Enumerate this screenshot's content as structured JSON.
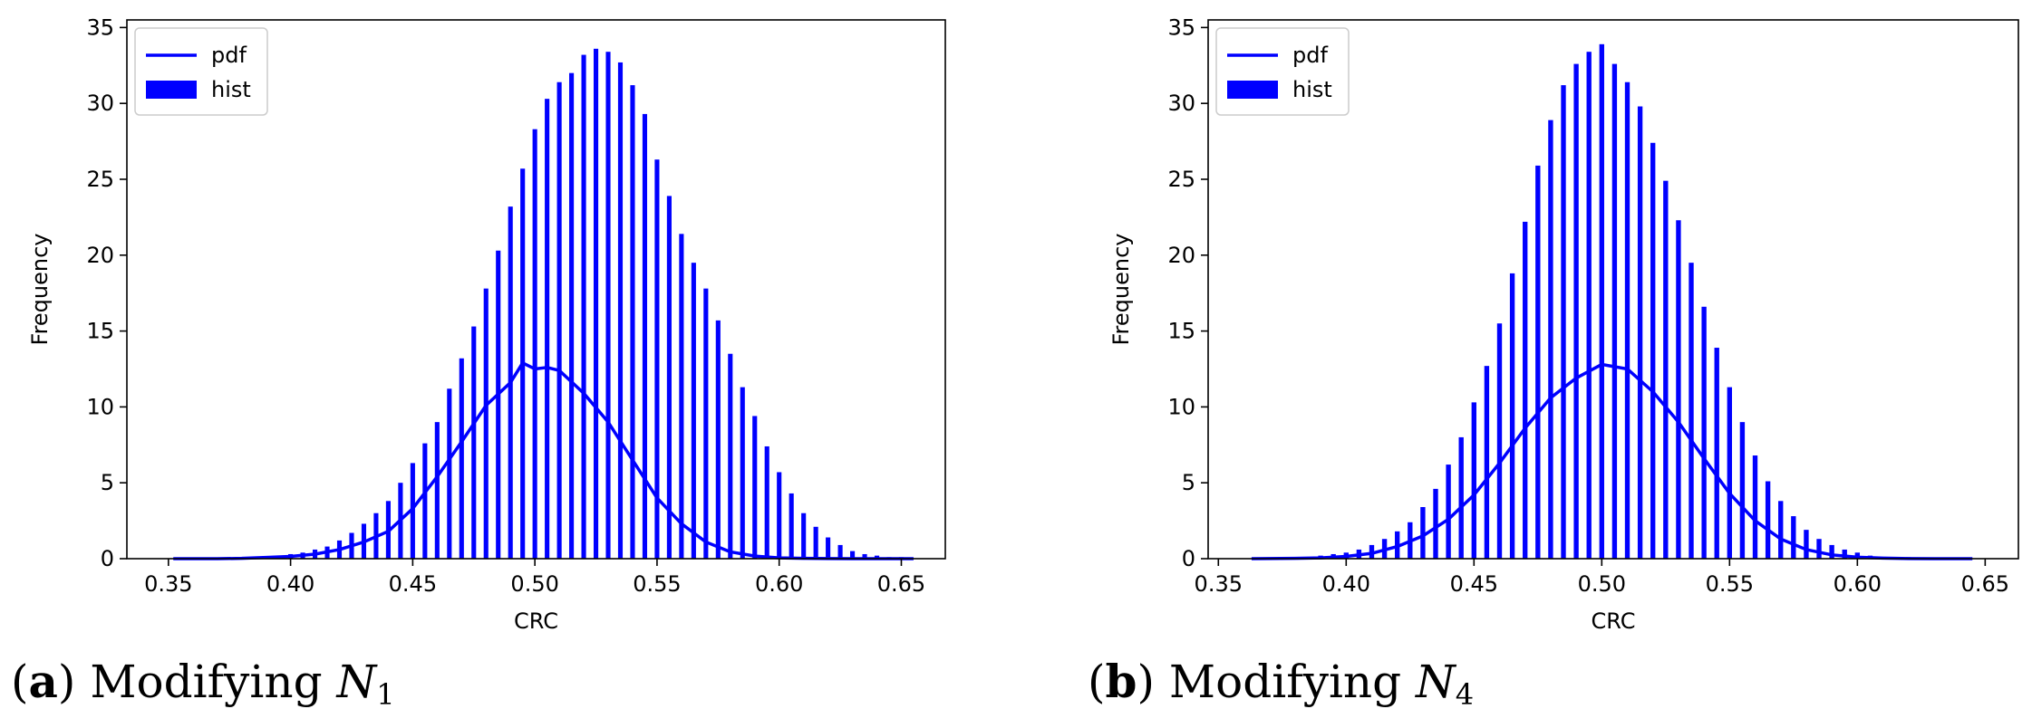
{
  "figure": {
    "subplots": [
      {
        "caption": {
          "paren_open": "(",
          "label": "a",
          "paren_close": ")",
          "text": " Modifying ",
          "var": "N",
          "sub": "1"
        }
      },
      {
        "caption": {
          "paren_open": "(",
          "label": "b",
          "paren_close": ")",
          "text": " Modifying ",
          "var": "N",
          "sub": "4"
        }
      }
    ]
  },
  "colors": {
    "series": "#0000ff",
    "axes": "#000000"
  },
  "chart_data": [
    {
      "type": "bar",
      "title": "",
      "xlabel": "CRC",
      "ylabel": "Frequency",
      "xlim": [
        0.333,
        0.668
      ],
      "ylim": [
        0,
        35.5
      ],
      "xticks": [
        0.35,
        0.4,
        0.45,
        0.5,
        0.55,
        0.6,
        0.65
      ],
      "xtick_labels": [
        "0.35",
        "0.40",
        "0.45",
        "0.50",
        "0.55",
        "0.60",
        "0.65"
      ],
      "yticks": [
        0,
        5,
        10,
        15,
        20,
        25,
        30,
        35
      ],
      "ytick_labels": [
        "0",
        "5",
        "10",
        "15",
        "20",
        "25",
        "30",
        "35"
      ],
      "legend": {
        "position": "top-left",
        "entries": [
          {
            "label": "pdf",
            "kind": "line"
          },
          {
            "label": "hist",
            "kind": "patch"
          }
        ]
      },
      "hist": {
        "bin_width": 0.005,
        "bin_centers": [
          0.355,
          0.36,
          0.365,
          0.37,
          0.375,
          0.38,
          0.385,
          0.39,
          0.395,
          0.4,
          0.405,
          0.41,
          0.415,
          0.42,
          0.425,
          0.43,
          0.435,
          0.44,
          0.445,
          0.45,
          0.455,
          0.46,
          0.465,
          0.47,
          0.475,
          0.48,
          0.485,
          0.49,
          0.495,
          0.5,
          0.505,
          0.51,
          0.515,
          0.52,
          0.525,
          0.53,
          0.535,
          0.54,
          0.545,
          0.55,
          0.555,
          0.56,
          0.565,
          0.57,
          0.575,
          0.58,
          0.585,
          0.59,
          0.595,
          0.6,
          0.605,
          0.61,
          0.615,
          0.62,
          0.625,
          0.63,
          0.635,
          0.64,
          0.645,
          0.65
        ],
        "values": [
          0,
          0,
          0,
          0,
          0,
          0.1,
          0.1,
          0.1,
          0.2,
          0.3,
          0.4,
          0.6,
          0.8,
          1.2,
          1.7,
          2.3,
          3.0,
          3.8,
          5.0,
          6.3,
          7.6,
          9.0,
          11.2,
          13.2,
          15.3,
          17.8,
          20.3,
          23.2,
          25.7,
          28.3,
          30.3,
          31.4,
          32.0,
          33.2,
          33.6,
          33.4,
          32.7,
          31.2,
          29.3,
          26.3,
          23.9,
          21.4,
          19.5,
          17.8,
          15.7,
          13.5,
          11.3,
          9.4,
          7.4,
          5.7,
          4.3,
          3.0,
          2.1,
          1.4,
          0.9,
          0.5,
          0.3,
          0.2,
          0.1,
          0.1
        ],
        "note": "bar heights scaled so peak of centered bins approximates the visible histogram"
      },
      "pdf": {
        "x": [
          0.352,
          0.37,
          0.38,
          0.39,
          0.4,
          0.41,
          0.42,
          0.43,
          0.44,
          0.45,
          0.46,
          0.47,
          0.48,
          0.49,
          0.495,
          0.5,
          0.505,
          0.51,
          0.52,
          0.53,
          0.54,
          0.55,
          0.56,
          0.57,
          0.58,
          0.59,
          0.6,
          0.61,
          0.62,
          0.63,
          0.64,
          0.655
        ],
        "y": [
          0,
          0,
          0.02,
          0.08,
          0.15,
          0.3,
          0.6,
          1.1,
          1.8,
          3.3,
          5.4,
          7.7,
          10.1,
          11.6,
          12.9,
          12.5,
          12.6,
          12.4,
          10.9,
          9.0,
          6.5,
          4.0,
          2.3,
          1.1,
          0.45,
          0.17,
          0.05,
          0.02,
          0.01,
          0,
          0,
          0
        ]
      }
    },
    {
      "type": "bar",
      "title": "",
      "xlabel": "CRC",
      "ylabel": "Frequency",
      "xlim": [
        0.346,
        0.663
      ],
      "ylim": [
        0,
        35.5
      ],
      "xticks": [
        0.35,
        0.4,
        0.45,
        0.5,
        0.55,
        0.6,
        0.65
      ],
      "xtick_labels": [
        "0.35",
        "0.40",
        "0.45",
        "0.50",
        "0.55",
        "0.60",
        "0.65"
      ],
      "yticks": [
        0,
        5,
        10,
        15,
        20,
        25,
        30,
        35
      ],
      "ytick_labels": [
        "0",
        "5",
        "10",
        "15",
        "20",
        "25",
        "30",
        "35"
      ],
      "legend": {
        "position": "top-left",
        "entries": [
          {
            "label": "pdf",
            "kind": "line"
          },
          {
            "label": "hist",
            "kind": "patch"
          }
        ]
      },
      "hist": {
        "bin_width": 0.005,
        "bin_centers": [
          0.365,
          0.37,
          0.375,
          0.38,
          0.385,
          0.39,
          0.395,
          0.4,
          0.405,
          0.41,
          0.415,
          0.42,
          0.425,
          0.43,
          0.435,
          0.44,
          0.445,
          0.45,
          0.455,
          0.46,
          0.465,
          0.47,
          0.475,
          0.48,
          0.485,
          0.49,
          0.495,
          0.5,
          0.505,
          0.51,
          0.515,
          0.52,
          0.525,
          0.53,
          0.535,
          0.54,
          0.545,
          0.55,
          0.555,
          0.56,
          0.565,
          0.57,
          0.575,
          0.58,
          0.585,
          0.59,
          0.595,
          0.6,
          0.605,
          0.61,
          0.615,
          0.62,
          0.625,
          0.63,
          0.635,
          0.64,
          0.645
        ],
        "values": [
          0,
          0,
          0.1,
          0.1,
          0.1,
          0.2,
          0.3,
          0.4,
          0.6,
          0.9,
          1.3,
          1.8,
          2.4,
          3.4,
          4.6,
          6.2,
          8.0,
          10.3,
          12.7,
          15.5,
          18.8,
          22.2,
          25.9,
          28.9,
          31.2,
          32.6,
          33.4,
          33.9,
          32.6,
          31.4,
          29.8,
          27.4,
          24.9,
          22.3,
          19.5,
          16.6,
          13.9,
          11.3,
          9.0,
          6.8,
          5.1,
          3.8,
          2.8,
          1.9,
          1.3,
          0.9,
          0.6,
          0.4,
          0.2,
          0.1,
          0.1,
          0.1,
          0,
          0,
          0,
          0,
          0
        ]
      },
      "pdf": {
        "x": [
          0.363,
          0.38,
          0.39,
          0.4,
          0.41,
          0.42,
          0.43,
          0.44,
          0.45,
          0.46,
          0.47,
          0.48,
          0.49,
          0.5,
          0.51,
          0.52,
          0.53,
          0.54,
          0.55,
          0.56,
          0.57,
          0.58,
          0.59,
          0.6,
          0.61,
          0.62,
          0.63,
          0.645
        ],
        "y": [
          0,
          0.02,
          0.05,
          0.15,
          0.35,
          0.8,
          1.5,
          2.6,
          4.2,
          6.3,
          8.6,
          10.6,
          11.9,
          12.8,
          12.5,
          11.0,
          9.0,
          6.6,
          4.3,
          2.5,
          1.3,
          0.6,
          0.25,
          0.1,
          0.04,
          0.01,
          0,
          0
        ]
      }
    }
  ]
}
